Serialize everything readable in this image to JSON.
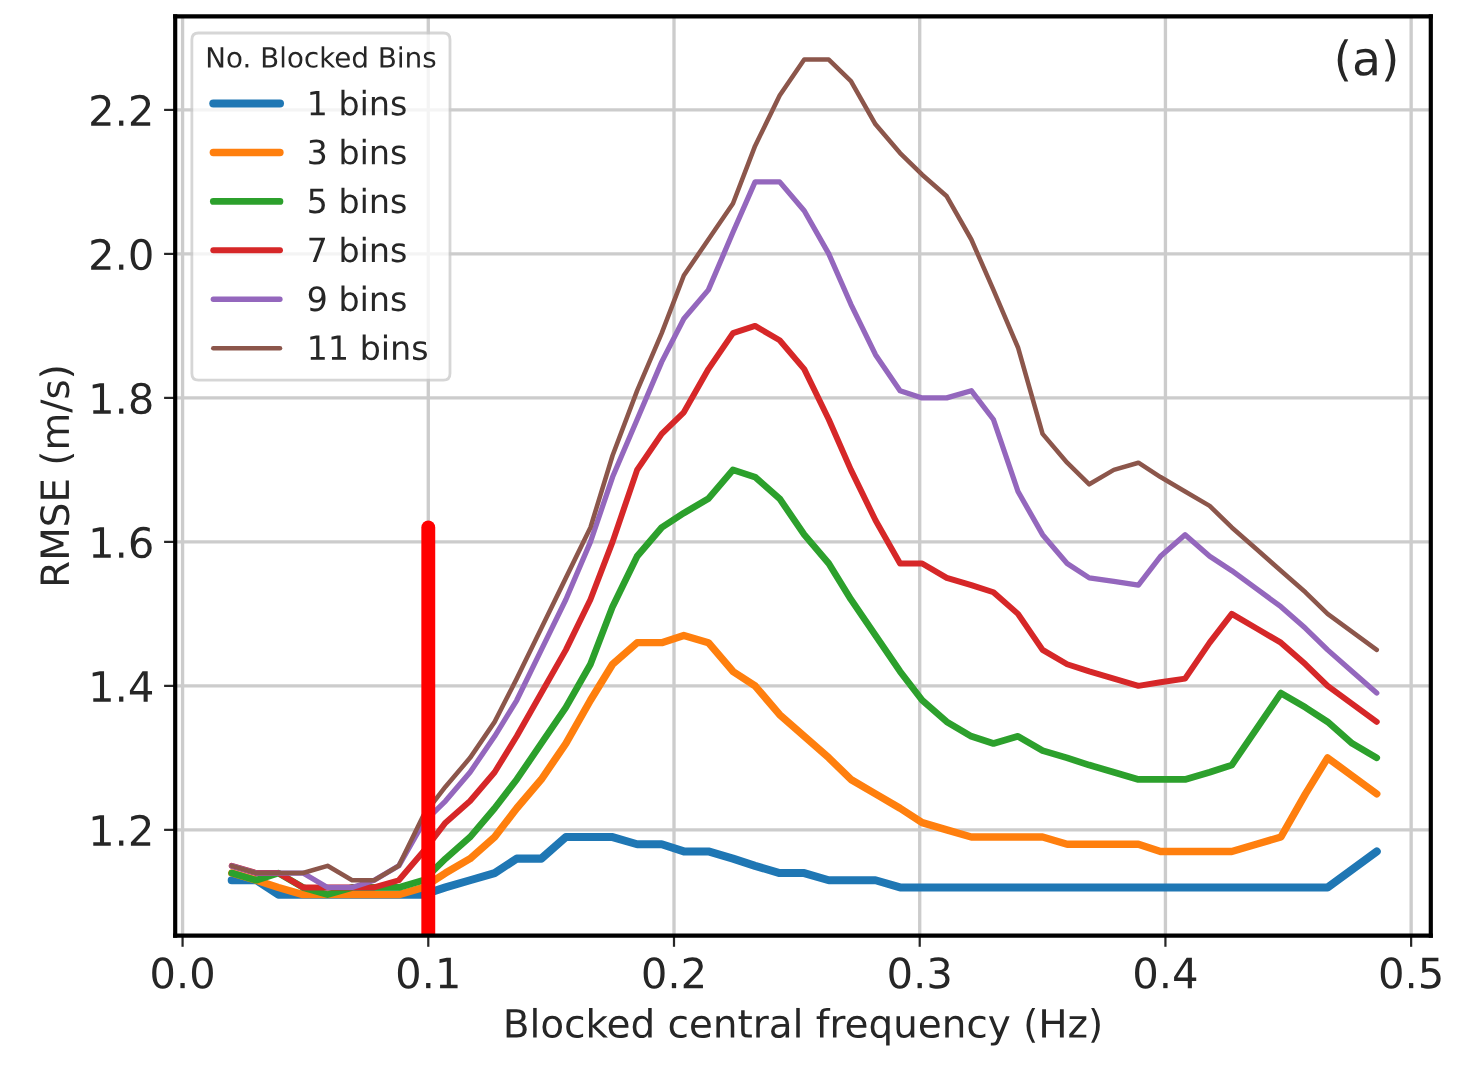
{
  "chart_data": {
    "type": "line",
    "xlabel": "Blocked central frequency (Hz)",
    "ylabel": "RMSE (m/s)",
    "legend_title": "No. Blocked Bins",
    "annotations": [
      "(a)"
    ],
    "x": [
      0.02,
      0.03,
      0.039,
      0.049,
      0.059,
      0.069,
      0.078,
      0.088,
      0.098,
      0.107,
      0.117,
      0.127,
      0.136,
      0.146,
      0.156,
      0.166,
      0.175,
      0.185,
      0.195,
      0.204,
      0.214,
      0.224,
      0.233,
      0.243,
      0.253,
      0.263,
      0.272,
      0.282,
      0.292,
      0.301,
      0.311,
      0.321,
      0.33,
      0.34,
      0.35,
      0.36,
      0.369,
      0.379,
      0.389,
      0.398,
      0.408,
      0.418,
      0.427,
      0.437,
      0.447,
      0.457,
      0.466,
      0.476,
      0.486
    ],
    "series": [
      {
        "name": "1 bins",
        "color": "#1f77b4",
        "values": [
          1.13,
          1.13,
          1.11,
          1.11,
          1.11,
          1.11,
          1.11,
          1.11,
          1.11,
          1.12,
          1.13,
          1.14,
          1.16,
          1.16,
          1.19,
          1.19,
          1.19,
          1.18,
          1.18,
          1.17,
          1.17,
          1.16,
          1.15,
          1.14,
          1.14,
          1.13,
          1.13,
          1.13,
          1.12,
          1.12,
          1.12,
          1.12,
          1.12,
          1.12,
          1.12,
          1.12,
          1.12,
          1.12,
          1.12,
          1.12,
          1.12,
          1.12,
          1.12,
          1.12,
          1.12,
          1.12,
          1.12,
          1.145,
          1.17
        ]
      },
      {
        "name": "3 bins",
        "color": "#ff7f0e",
        "values": [
          1.14,
          1.13,
          1.12,
          1.11,
          1.11,
          1.11,
          1.11,
          1.11,
          1.12,
          1.14,
          1.16,
          1.19,
          1.23,
          1.27,
          1.32,
          1.38,
          1.43,
          1.46,
          1.46,
          1.47,
          1.46,
          1.42,
          1.4,
          1.36,
          1.33,
          1.3,
          1.27,
          1.25,
          1.23,
          1.21,
          1.2,
          1.19,
          1.19,
          1.19,
          1.19,
          1.18,
          1.18,
          1.18,
          1.18,
          1.17,
          1.17,
          1.17,
          1.17,
          1.18,
          1.19,
          1.25,
          1.3,
          1.275,
          1.25
        ]
      },
      {
        "name": "5 bins",
        "color": "#2ca02c",
        "values": [
          1.14,
          1.13,
          1.14,
          1.12,
          1.11,
          1.12,
          1.12,
          1.12,
          1.13,
          1.16,
          1.19,
          1.23,
          1.27,
          1.32,
          1.37,
          1.43,
          1.51,
          1.58,
          1.62,
          1.64,
          1.66,
          1.7,
          1.69,
          1.66,
          1.61,
          1.57,
          1.52,
          1.47,
          1.42,
          1.38,
          1.35,
          1.33,
          1.32,
          1.33,
          1.31,
          1.3,
          1.29,
          1.28,
          1.27,
          1.27,
          1.27,
          1.28,
          1.29,
          1.34,
          1.39,
          1.37,
          1.35,
          1.32,
          1.3
        ]
      },
      {
        "name": "7 bins",
        "color": "#d62728",
        "values": [
          1.15,
          1.14,
          1.14,
          1.12,
          1.12,
          1.12,
          1.12,
          1.13,
          1.17,
          1.21,
          1.24,
          1.28,
          1.33,
          1.39,
          1.45,
          1.52,
          1.6,
          1.7,
          1.75,
          1.78,
          1.84,
          1.89,
          1.9,
          1.88,
          1.84,
          1.77,
          1.7,
          1.63,
          1.57,
          1.57,
          1.55,
          1.54,
          1.53,
          1.5,
          1.45,
          1.43,
          1.42,
          1.41,
          1.4,
          1.405,
          1.41,
          1.46,
          1.5,
          1.48,
          1.46,
          1.43,
          1.4,
          1.375,
          1.35
        ]
      },
      {
        "name": "9 bins",
        "color": "#9467bd",
        "values": [
          1.15,
          1.14,
          1.14,
          1.14,
          1.12,
          1.12,
          1.13,
          1.15,
          1.21,
          1.24,
          1.28,
          1.33,
          1.38,
          1.45,
          1.52,
          1.6,
          1.69,
          1.77,
          1.85,
          1.91,
          1.95,
          2.03,
          2.1,
          2.1,
          2.06,
          2.0,
          1.93,
          1.86,
          1.81,
          1.8,
          1.8,
          1.81,
          1.77,
          1.67,
          1.61,
          1.57,
          1.55,
          1.545,
          1.54,
          1.58,
          1.61,
          1.58,
          1.56,
          1.535,
          1.51,
          1.48,
          1.45,
          1.42,
          1.39
        ]
      },
      {
        "name": "11 bins",
        "color": "#8c564b",
        "values": [
          1.15,
          1.14,
          1.14,
          1.14,
          1.15,
          1.13,
          1.13,
          1.15,
          1.22,
          1.26,
          1.3,
          1.35,
          1.41,
          1.48,
          1.55,
          1.62,
          1.72,
          1.81,
          1.89,
          1.97,
          2.02,
          2.07,
          2.15,
          2.22,
          2.27,
          2.27,
          2.24,
          2.18,
          2.14,
          2.11,
          2.08,
          2.02,
          1.95,
          1.87,
          1.75,
          1.71,
          1.68,
          1.7,
          1.71,
          1.69,
          1.67,
          1.65,
          1.62,
          1.59,
          1.56,
          1.53,
          1.5,
          1.475,
          1.45
        ]
      },
      {
        "color": "#ff0000",
        "x": [
          0.1,
          0.1
        ],
        "values": [
          1.053,
          1.62
        ]
      }
    ],
    "xlim": [
      -0.003,
      0.508
    ],
    "xticks": [
      {
        "value": 0,
        "label": "0.0"
      },
      0.1,
      0.2,
      0.3,
      0.4,
      0.5
    ],
    "ylim": [
      1.053,
      2.33
    ],
    "yticks": [
      1.2,
      1.4,
      1.6,
      1.8,
      {
        "value": 2,
        "label": "2.0"
      },
      2.2
    ],
    "grid": true,
    "legend": "top left"
  }
}
